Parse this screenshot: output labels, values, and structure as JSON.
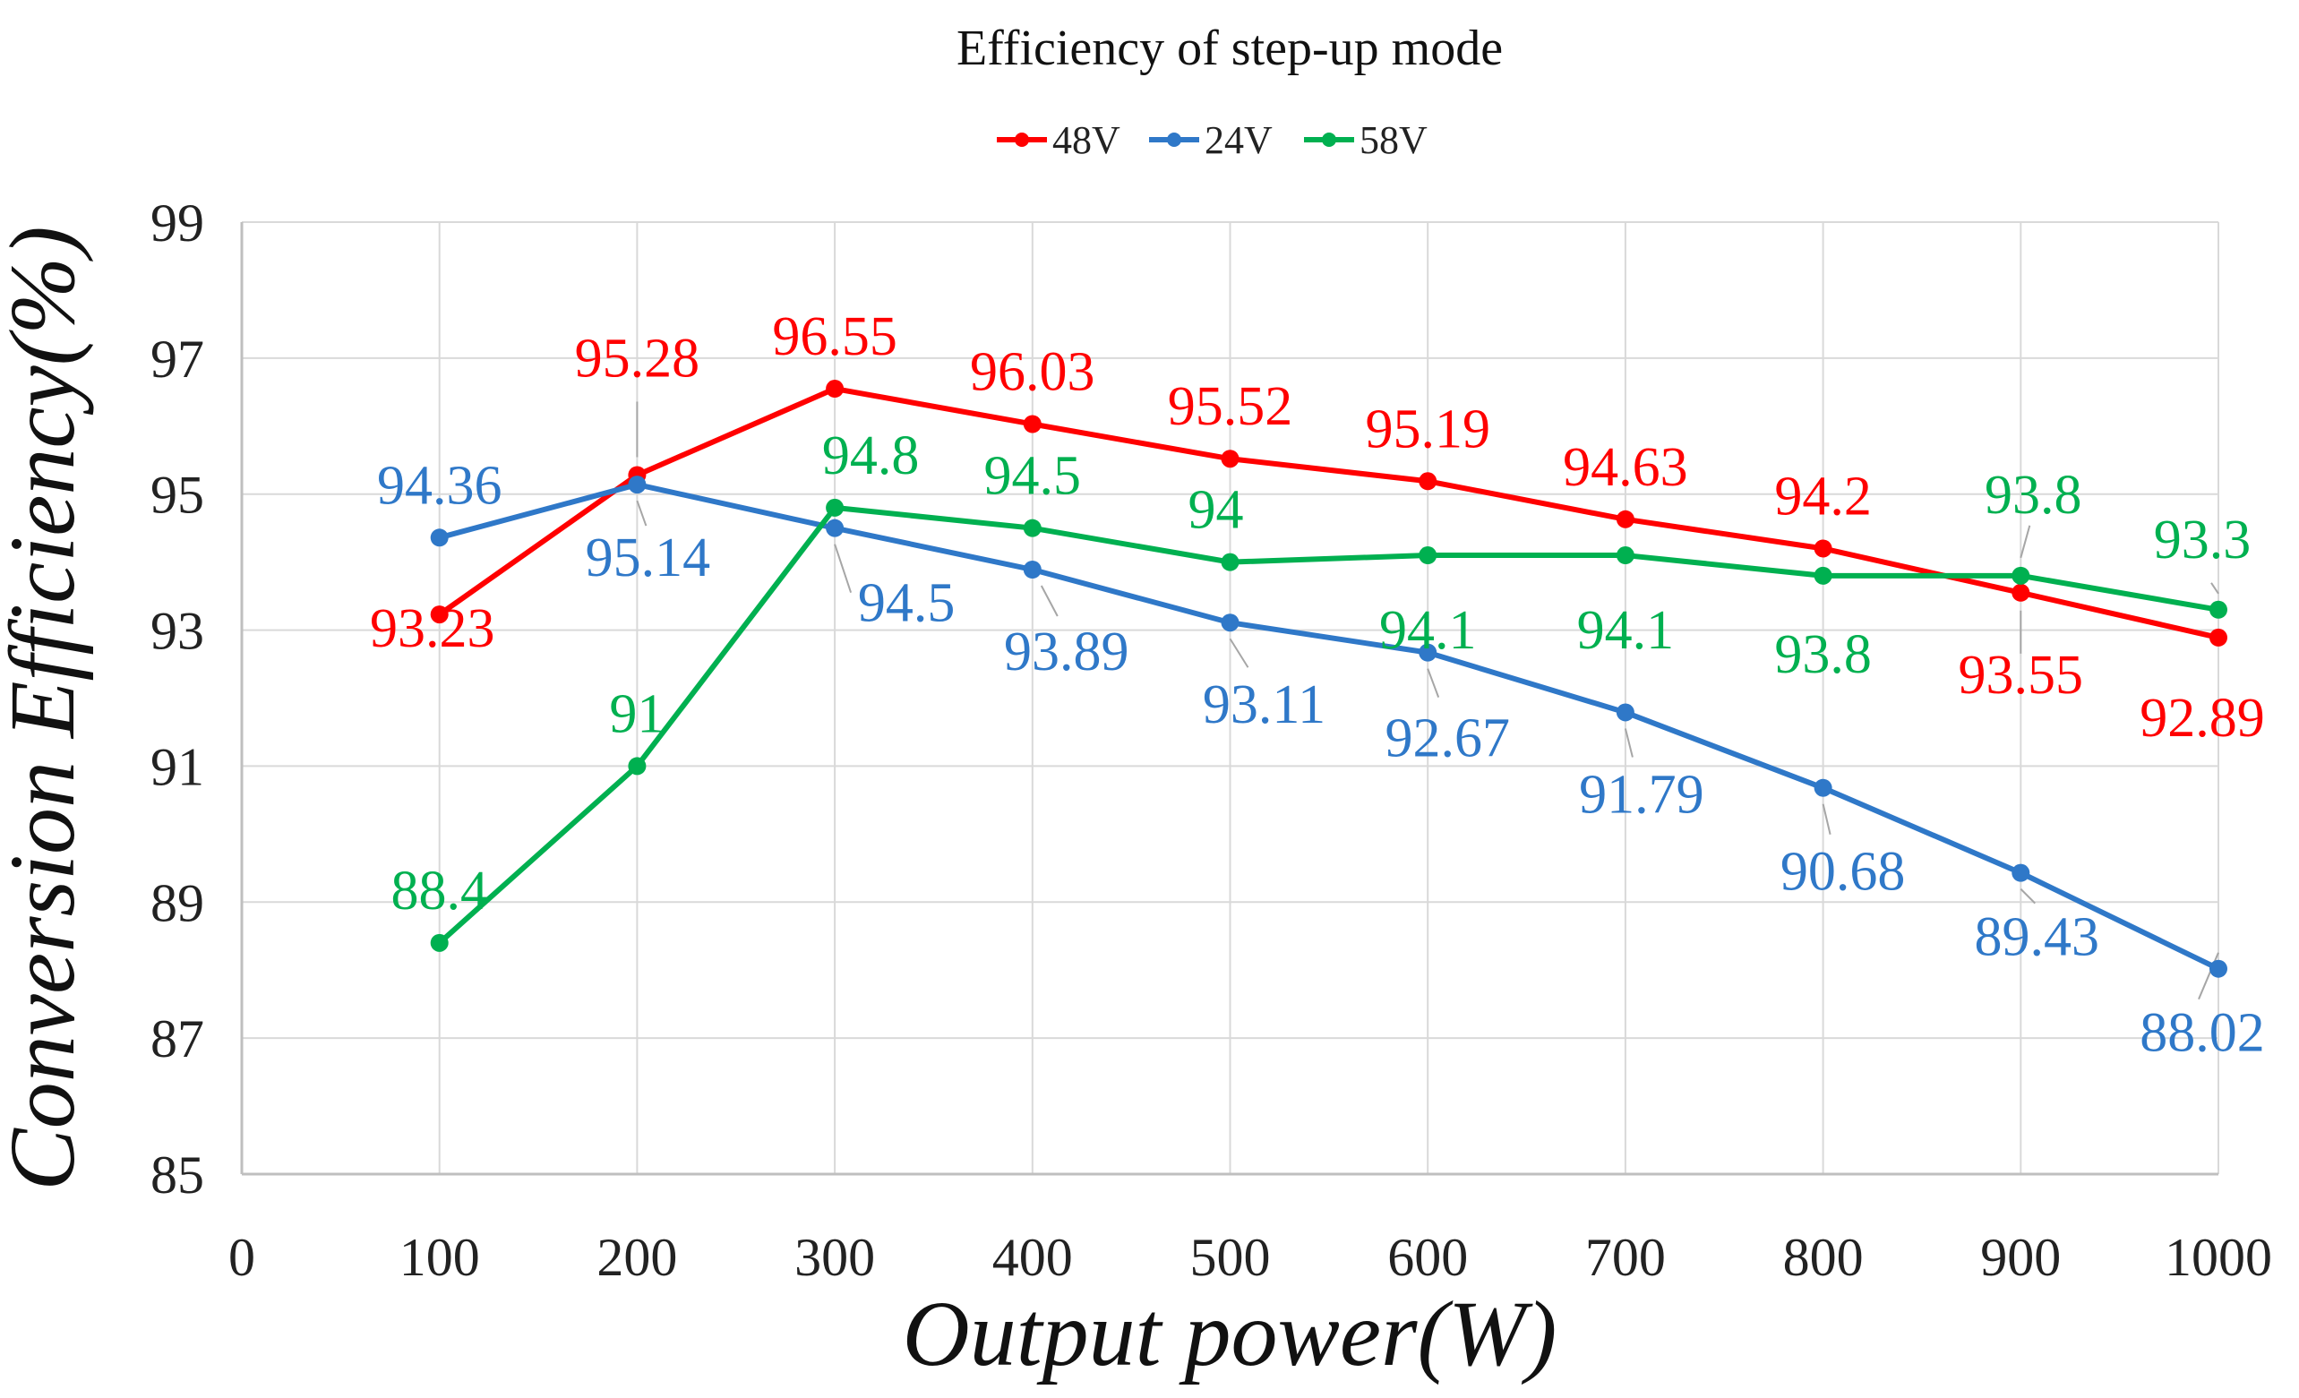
{
  "chart_data": {
    "type": "line",
    "title": "Efficiency of step-up mode",
    "xlabel": "Output power(W)",
    "ylabel": "Conversion Efficiency(%)",
    "xlim": [
      0,
      1000
    ],
    "ylim": [
      85,
      99
    ],
    "x_ticks": [
      0,
      100,
      200,
      300,
      400,
      500,
      600,
      700,
      800,
      900,
      1000
    ],
    "y_ticks": [
      85,
      87,
      89,
      91,
      93,
      95,
      97,
      99
    ],
    "grid": true,
    "legend_position": "top-center",
    "series": [
      {
        "name": "48V",
        "color": "#ff0000",
        "x": [
          100,
          200,
          300,
          400,
          500,
          600,
          700,
          800,
          900,
          1000
        ],
        "values": [
          93.23,
          95.28,
          96.55,
          96.03,
          95.52,
          95.19,
          94.63,
          94.2,
          93.55,
          92.89
        ],
        "labels": [
          "93.23",
          "95.28",
          "96.55",
          "96.03",
          "95.52",
          "95.19",
          "94.63",
          "94.2",
          "93.55",
          "92.89"
        ]
      },
      {
        "name": "24V",
        "color": "#2f78c8",
        "x": [
          100,
          200,
          300,
          400,
          500,
          600,
          700,
          800,
          900,
          1000
        ],
        "values": [
          94.36,
          95.14,
          94.5,
          93.89,
          93.11,
          92.67,
          91.79,
          90.68,
          89.43,
          88.02
        ],
        "labels": [
          "94.36",
          "95.14",
          "94.5",
          "93.89",
          "93.11",
          "92.67",
          "91.79",
          "90.68",
          "89.43",
          "88.02"
        ]
      },
      {
        "name": "58V",
        "color": "#00b050",
        "x": [
          100,
          200,
          300,
          400,
          500,
          600,
          700,
          800,
          900,
          1000
        ],
        "values": [
          88.4,
          91,
          94.8,
          94.5,
          94,
          94.1,
          94.1,
          93.8,
          93.8,
          93.3
        ],
        "labels": [
          "88.4",
          "91",
          "94.8",
          "94.5",
          "94",
          "94.1",
          "94.1",
          "93.8",
          "93.8",
          "93.3"
        ]
      }
    ]
  }
}
